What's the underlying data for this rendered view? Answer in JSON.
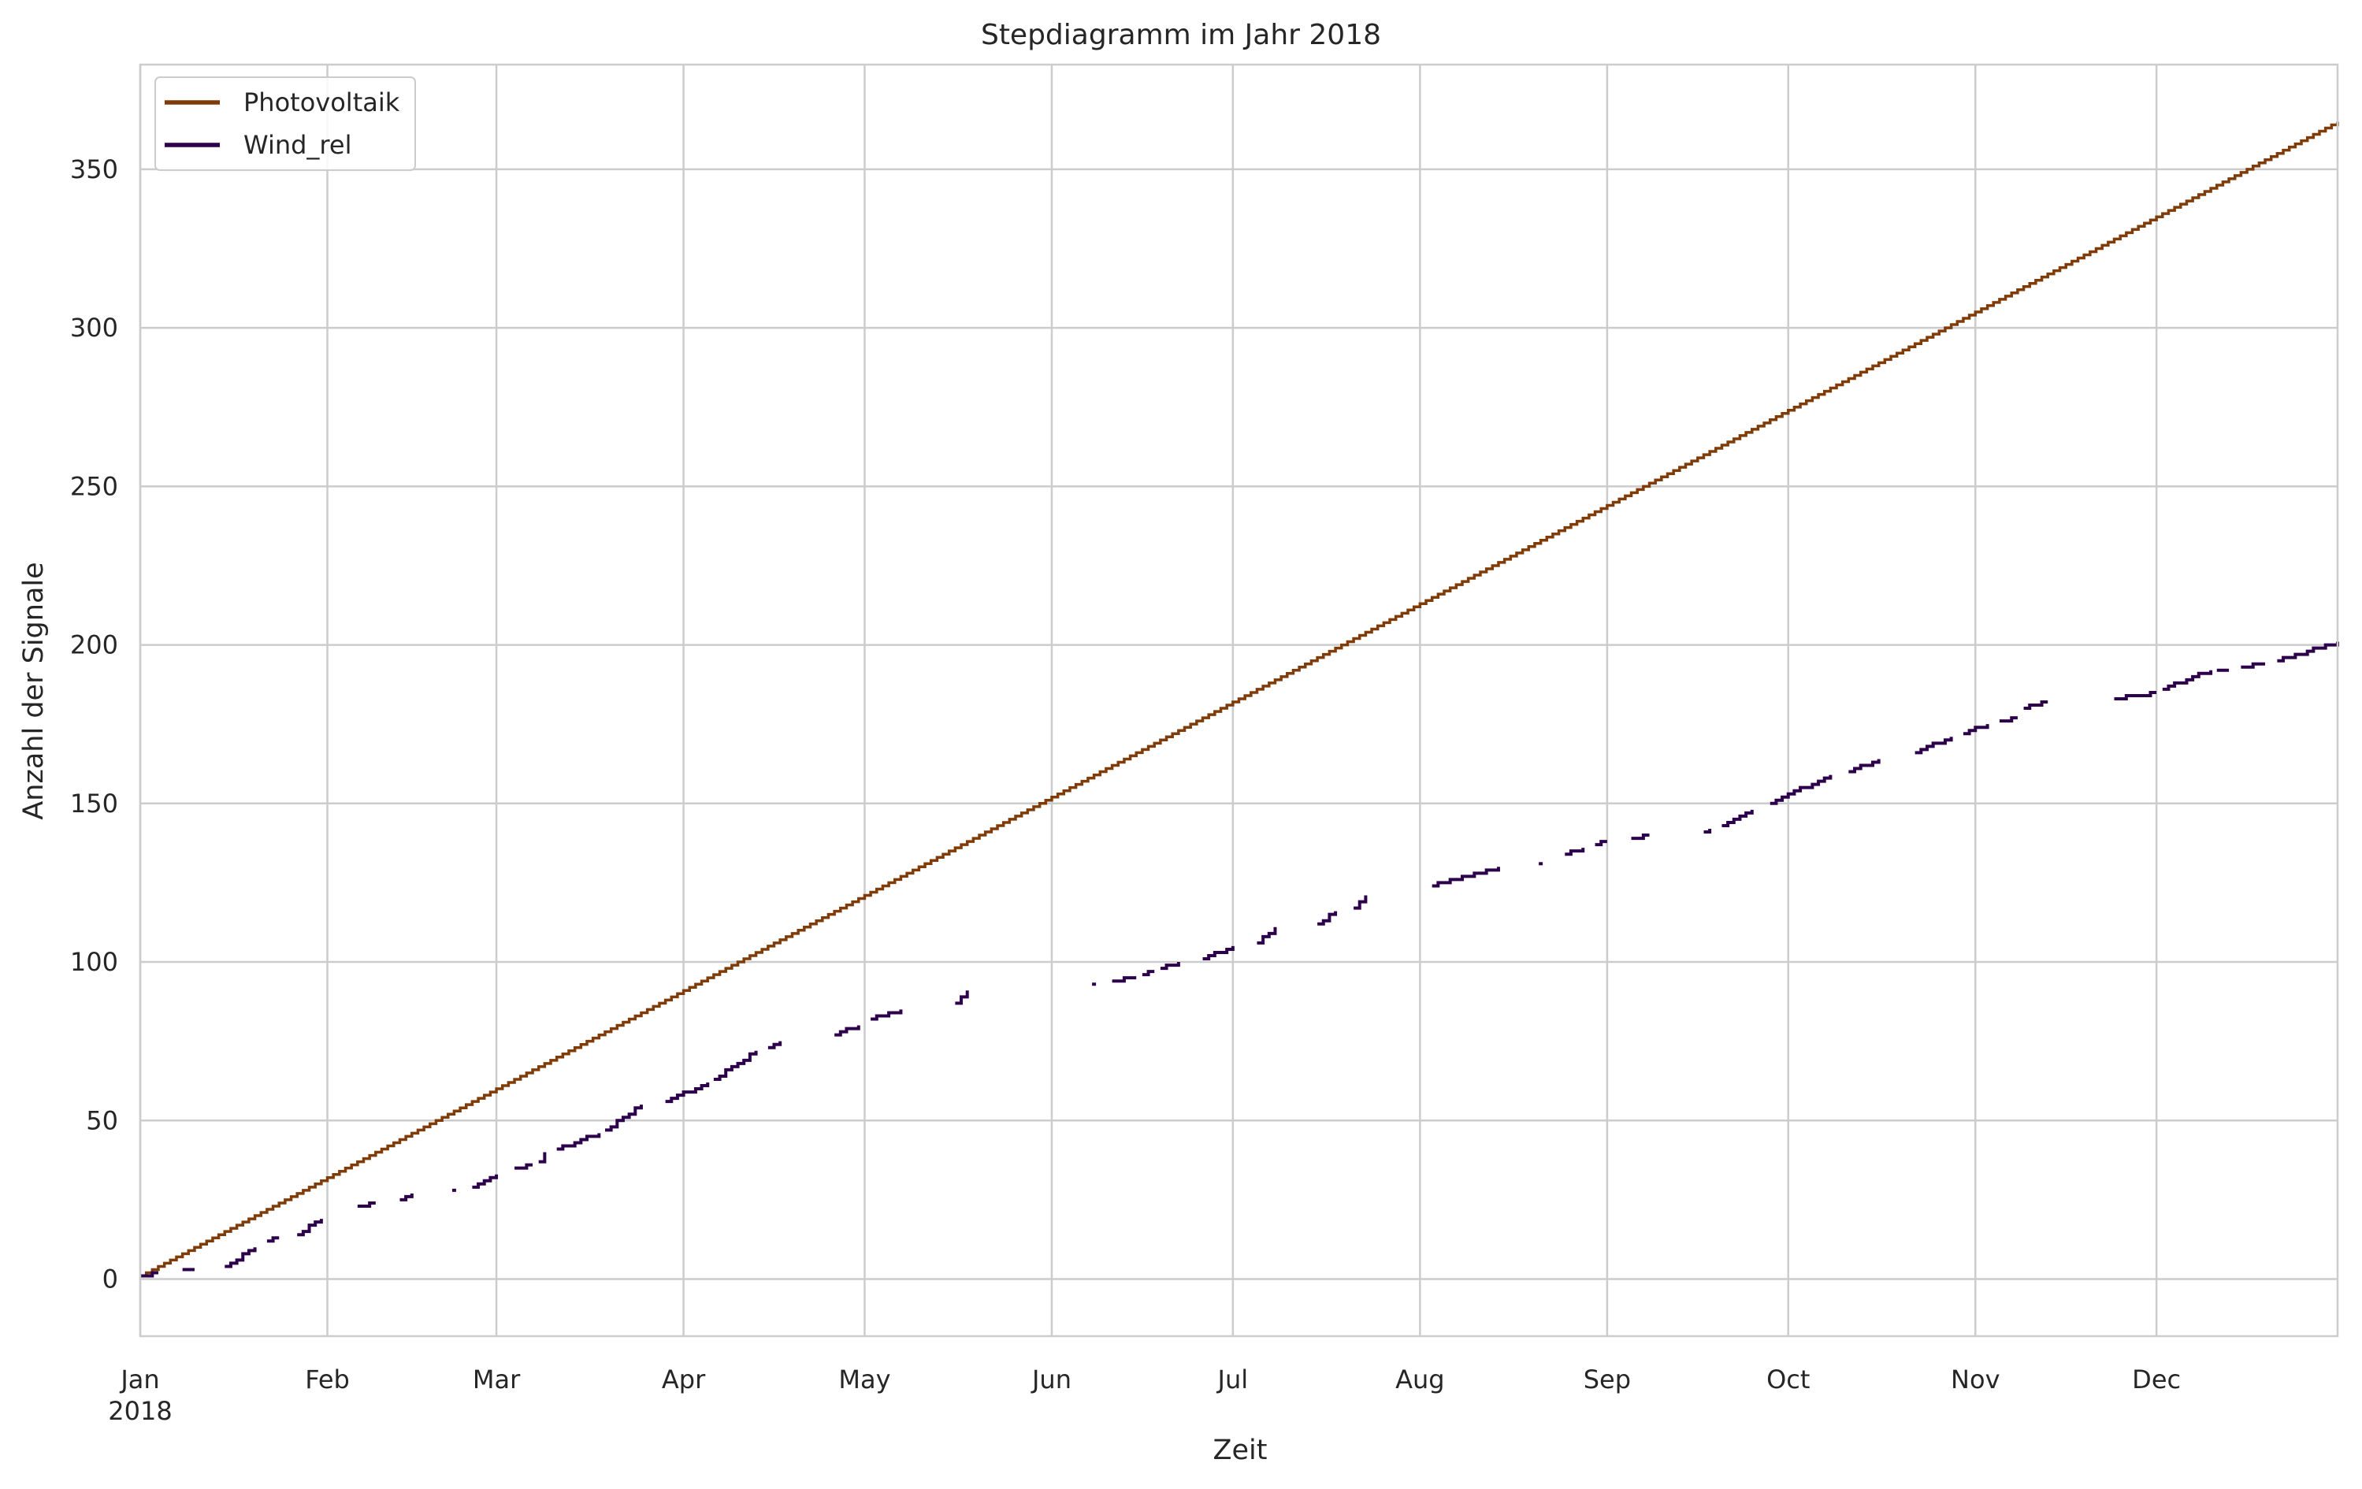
{
  "chart_data": {
    "type": "line",
    "title": "Stepdiagramm im Jahr 2018",
    "xlabel": "Zeit",
    "ylabel": "Anzahl der Signale",
    "x_axis": {
      "type": "date",
      "range": [
        "2018-01-01",
        "2018-12-31"
      ],
      "ticks": [
        {
          "date": "2018-01-01",
          "label": "Jan",
          "sublabel": "2018"
        },
        {
          "date": "2018-02-01",
          "label": "Feb",
          "sublabel": ""
        },
        {
          "date": "2018-03-01",
          "label": "Mar",
          "sublabel": ""
        },
        {
          "date": "2018-04-01",
          "label": "Apr",
          "sublabel": ""
        },
        {
          "date": "2018-05-01",
          "label": "May",
          "sublabel": ""
        },
        {
          "date": "2018-06-01",
          "label": "Jun",
          "sublabel": ""
        },
        {
          "date": "2018-07-01",
          "label": "Jul",
          "sublabel": ""
        },
        {
          "date": "2018-08-01",
          "label": "Aug",
          "sublabel": ""
        },
        {
          "date": "2018-09-01",
          "label": "Sep",
          "sublabel": ""
        },
        {
          "date": "2018-10-01",
          "label": "Oct",
          "sublabel": ""
        },
        {
          "date": "2018-11-01",
          "label": "Nov",
          "sublabel": ""
        },
        {
          "date": "2018-12-01",
          "label": "Dec",
          "sublabel": ""
        }
      ]
    },
    "y_axis": {
      "range": [
        -18,
        383
      ],
      "ticks": [
        0,
        50,
        100,
        150,
        200,
        250,
        300,
        350
      ]
    },
    "grid": true,
    "legend": {
      "position": "top-left",
      "entries": [
        "Photovoltaik",
        "Wind_rel"
      ]
    },
    "series": [
      {
        "name": "Photovoltaik",
        "color": "#7f3b08",
        "style": "step",
        "points": [
          [
            "2018-01-01",
            1
          ],
          [
            "2018-12-31",
            365
          ]
        ]
      },
      {
        "name": "Wind_rel",
        "color": "#2d004b",
        "style": "step-segments",
        "segments": [
          [
            [
              "2018-01-01",
              1
            ],
            [
              "2018-01-04",
              2
            ]
          ],
          [
            [
              "2018-01-08",
              3
            ],
            [
              "2018-01-10",
              3
            ]
          ],
          [
            [
              "2018-01-15",
              4
            ],
            [
              "2018-01-20",
              10
            ]
          ],
          [
            [
              "2018-01-22",
              12
            ],
            [
              "2018-01-24",
              13
            ]
          ],
          [
            [
              "2018-01-27",
              14
            ],
            [
              "2018-01-31",
              19
            ]
          ],
          [
            [
              "2018-02-06",
              23
            ],
            [
              "2018-02-09",
              24
            ]
          ],
          [
            [
              "2018-02-13",
              25
            ],
            [
              "2018-02-15",
              27
            ]
          ],
          [
            [
              "2018-02-22",
              28
            ]
          ],
          [
            [
              "2018-02-25",
              29
            ],
            [
              "2018-03-01",
              33
            ]
          ],
          [
            [
              "2018-03-04",
              35
            ],
            [
              "2018-03-07",
              36
            ]
          ],
          [
            [
              "2018-03-08",
              37
            ],
            [
              "2018-03-09",
              40
            ]
          ],
          [
            [
              "2018-03-11",
              41
            ],
            [
              "2018-03-18",
              46
            ]
          ],
          [
            [
              "2018-03-19",
              47
            ],
            [
              "2018-03-25",
              55
            ]
          ],
          [
            [
              "2018-03-29",
              56
            ],
            [
              "2018-04-05",
              62
            ]
          ],
          [
            [
              "2018-04-06",
              63
            ],
            [
              "2018-04-13",
              72
            ]
          ],
          [
            [
              "2018-04-15",
              73
            ],
            [
              "2018-04-17",
              75
            ]
          ],
          [
            [
              "2018-04-26",
              77
            ],
            [
              "2018-04-30",
              80
            ]
          ],
          [
            [
              "2018-05-02",
              82
            ],
            [
              "2018-05-07",
              85
            ]
          ],
          [
            [
              "2018-05-16",
              87
            ],
            [
              "2018-05-18",
              91
            ]
          ],
          [
            [
              "2018-06-08",
              93
            ]
          ],
          [
            [
              "2018-06-11",
              94
            ],
            [
              "2018-06-15",
              95
            ]
          ],
          [
            [
              "2018-06-16",
              96
            ],
            [
              "2018-06-18",
              97
            ]
          ],
          [
            [
              "2018-06-19",
              98
            ],
            [
              "2018-06-22",
              100
            ]
          ],
          [
            [
              "2018-06-26",
              101
            ],
            [
              "2018-07-01",
              105
            ]
          ],
          [
            [
              "2018-07-05",
              106
            ],
            [
              "2018-07-08",
              111
            ]
          ],
          [
            [
              "2018-07-15",
              112
            ],
            [
              "2018-07-18",
              116
            ]
          ],
          [
            [
              "2018-07-21",
              117
            ],
            [
              "2018-07-23",
              121
            ]
          ],
          [
            [
              "2018-08-03",
              124
            ],
            [
              "2018-08-14",
              130
            ]
          ],
          [
            [
              "2018-08-21",
              131
            ]
          ],
          [
            [
              "2018-08-25",
              134
            ],
            [
              "2018-08-28",
              136
            ]
          ],
          [
            [
              "2018-08-30",
              137
            ],
            [
              "2018-09-01",
              138
            ]
          ],
          [
            [
              "2018-09-05",
              139
            ],
            [
              "2018-09-08",
              140
            ]
          ],
          [
            [
              "2018-09-17",
              141
            ],
            [
              "2018-09-18",
              142
            ]
          ],
          [
            [
              "2018-09-20",
              143
            ],
            [
              "2018-09-25",
              148
            ]
          ],
          [
            [
              "2018-09-28",
              150
            ],
            [
              "2018-10-08",
              159
            ]
          ],
          [
            [
              "2018-10-11",
              160
            ],
            [
              "2018-10-16",
              164
            ]
          ],
          [
            [
              "2018-10-22",
              166
            ],
            [
              "2018-10-28",
              171
            ]
          ],
          [
            [
              "2018-10-30",
              172
            ],
            [
              "2018-11-03",
              175
            ]
          ],
          [
            [
              "2018-11-05",
              176
            ],
            [
              "2018-11-08",
              177
            ]
          ],
          [
            [
              "2018-11-09",
              180
            ],
            [
              "2018-11-13",
              182
            ]
          ],
          [
            [
              "2018-11-24",
              183
            ],
            [
              "2018-12-01",
              185
            ]
          ],
          [
            [
              "2018-12-02",
              186
            ],
            [
              "2018-12-10",
              192
            ]
          ],
          [
            [
              "2018-12-11",
              192
            ],
            [
              "2018-12-13",
              192
            ]
          ],
          [
            [
              "2018-12-15",
              193
            ],
            [
              "2018-12-19",
              194
            ]
          ],
          [
            [
              "2018-12-21",
              195
            ],
            [
              "2018-12-31",
              201
            ]
          ]
        ]
      }
    ]
  }
}
